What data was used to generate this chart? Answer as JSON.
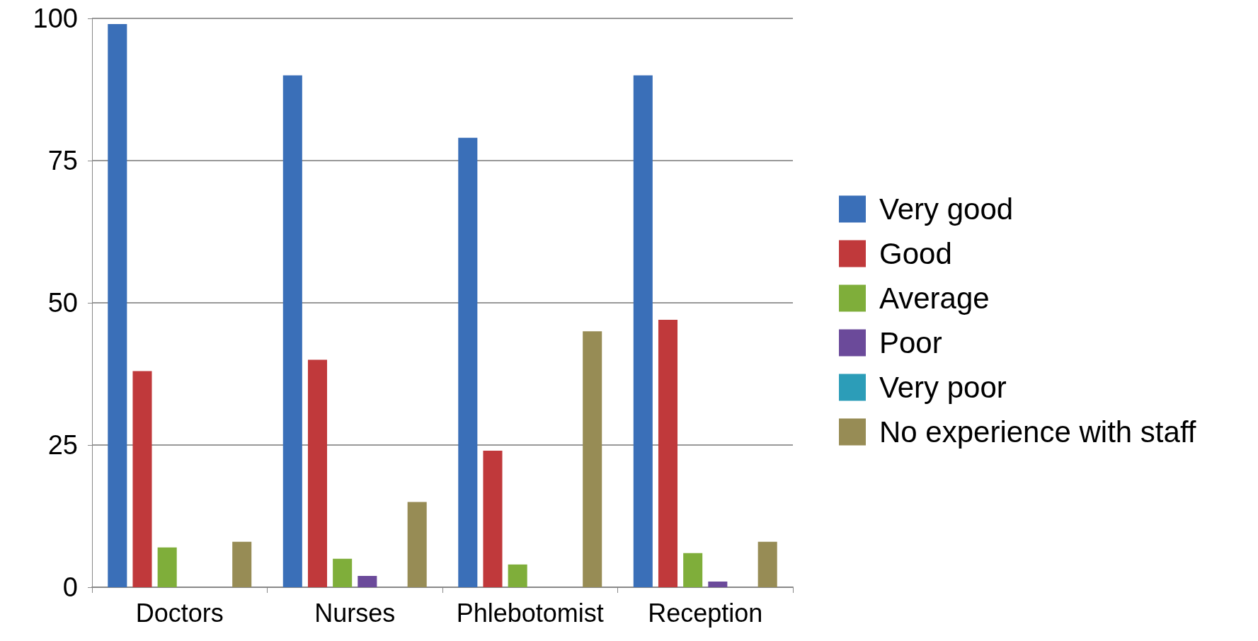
{
  "chart_data": {
    "type": "bar",
    "categories": [
      "Doctors",
      "Nurses",
      "Phlebotomist",
      "Reception"
    ],
    "series": [
      {
        "name": "Very good",
        "color": "#3a6fb8",
        "values": [
          99,
          90,
          79,
          90
        ]
      },
      {
        "name": "Good",
        "color": "#c0393b",
        "values": [
          38,
          40,
          24,
          47
        ]
      },
      {
        "name": "Average",
        "color": "#7fae3a",
        "values": [
          7,
          5,
          4,
          6
        ]
      },
      {
        "name": "Poor",
        "color": "#6b4a9a",
        "values": [
          0,
          2,
          0,
          1
        ]
      },
      {
        "name": "Very poor",
        "color": "#2c9db8",
        "values": [
          0,
          0,
          0,
          0
        ]
      },
      {
        "name": "No experience with staff",
        "color": "#978c55",
        "values": [
          8,
          15,
          45,
          8
        ]
      }
    ],
    "ylim": [
      0,
      100
    ],
    "yticks": [
      0,
      25,
      50,
      75,
      100
    ],
    "grid": "y",
    "legend": "right"
  }
}
